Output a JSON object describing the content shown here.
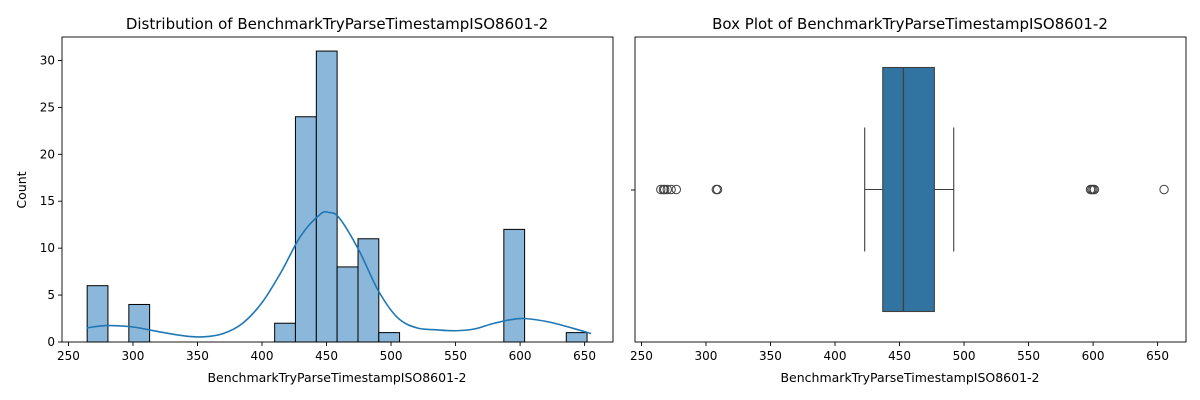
{
  "chart_data": [
    {
      "type": "bar",
      "subtype": "histogram-with-kde",
      "title": "Distribution of BenchmarkTryParseTimestampISO8601-2",
      "xlabel": "BenchmarkTryParseTimestampISO8601-2",
      "ylabel": "Count",
      "xlim": [
        245,
        672
      ],
      "ylim": [
        0,
        32.5
      ],
      "xticks": [
        250,
        300,
        350,
        400,
        450,
        500,
        550,
        600,
        650
      ],
      "yticks": [
        0,
        5,
        10,
        15,
        20,
        25,
        30
      ],
      "grid": false,
      "bin_edges": [
        264.5,
        280.6,
        296.8,
        312.9,
        329.1,
        345.2,
        361.4,
        377.5,
        393.6,
        409.8,
        425.9,
        442.1,
        458.2,
        474.4,
        490.5,
        506.6,
        522.8,
        538.9,
        555.1,
        571.2,
        587.4,
        603.5,
        619.6,
        635.8,
        651.9
      ],
      "counts": [
        6,
        0,
        4,
        0,
        0,
        0,
        0,
        0,
        0,
        2,
        24,
        31,
        8,
        11,
        1,
        0,
        0,
        0,
        0,
        0,
        12,
        0,
        0,
        1
      ],
      "bar_color": "#8bb8da",
      "kde": {
        "color": "#1f77b4",
        "x": [
          264,
          280,
          300,
          320,
          340,
          355,
          370,
          385,
          400,
          415,
          430,
          445,
          452,
          460,
          475,
          490,
          505,
          520,
          535,
          550,
          565,
          580,
          600,
          620,
          640,
          655
        ],
        "y": [
          1.5,
          1.75,
          1.6,
          1.1,
          0.65,
          0.55,
          0.9,
          2.0,
          4.2,
          7.5,
          11.3,
          13.6,
          13.8,
          13.2,
          9.8,
          5.5,
          2.6,
          1.5,
          1.3,
          1.2,
          1.4,
          2.0,
          2.5,
          2.2,
          1.5,
          0.9
        ]
      }
    },
    {
      "type": "box",
      "title": "Box Plot of BenchmarkTryParseTimestampISO8601-2",
      "xlabel": "BenchmarkTryParseTimestampISO8601-2",
      "xlim": [
        245,
        672
      ],
      "xticks": [
        250,
        300,
        350,
        400,
        450,
        500,
        550,
        600,
        650
      ],
      "grid": false,
      "box_color": "#3274a1",
      "whisker_low": 423,
      "q1": 437,
      "median": 453,
      "q3": 477,
      "whisker_high": 492,
      "outliers": [
        265,
        267,
        268,
        270,
        273,
        277,
        308,
        309,
        598,
        599,
        600,
        601,
        655
      ]
    }
  ]
}
